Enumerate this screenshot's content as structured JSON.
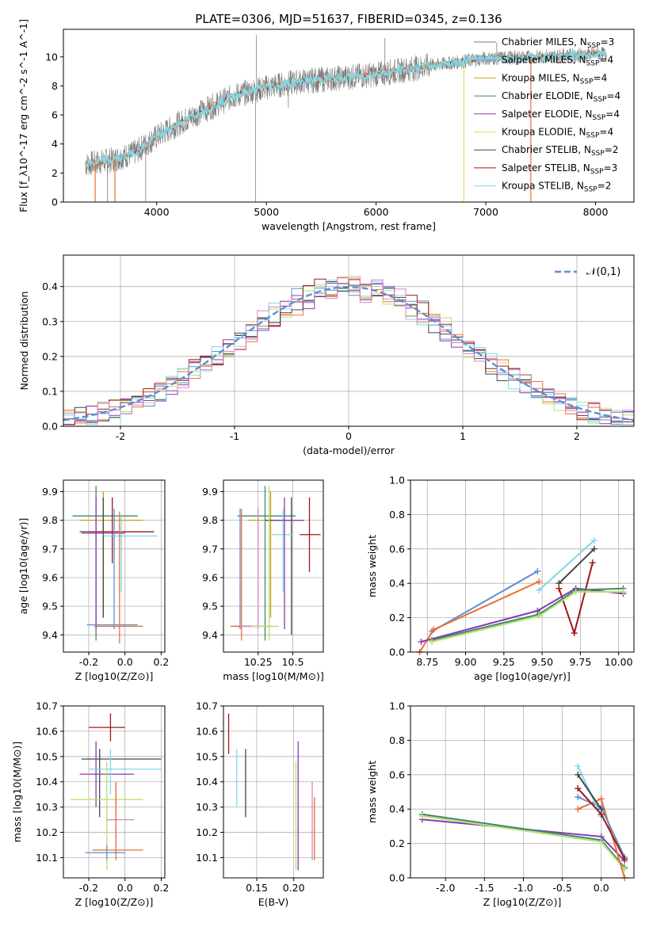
{
  "figure_title": "PLATE=0306, MJD=51637, FIBERID=0345, z=0.136",
  "colors": {
    "Chabrier MILES": "#7a7a7a",
    "Salpeter MILES": "#9a7fd1",
    "Kroupa MILES": "#c0a020",
    "Chabrier ELODIE": "#3a8a6a",
    "Salpeter ELODIE": "#8a3ab0",
    "Kroupa ELODIE": "#dede60",
    "Chabrier STELIB": "#444444",
    "Salpeter STELIB": "#a01818",
    "Kroupa STELIB": "#80d8e8",
    "extra_blue": "#5b8fd6",
    "extra_orange": "#e87030",
    "extra_pink": "#e080c0",
    "extra_green": "#b8e070"
  },
  "chart_data": [
    {
      "id": "spectrum",
      "type": "line",
      "xlabel": "wavelength [Angstrom, rest frame]",
      "ylabel": "Flux [f_λ10^-17 erg cm^-2 s^-1 A^-1]",
      "xlim": [
        3150,
        8350
      ],
      "ylim": [
        0,
        11.9
      ],
      "xticks": [
        4000,
        5000,
        6000,
        7000,
        8000
      ],
      "yticks": [
        0,
        2,
        4,
        6,
        8,
        10
      ],
      "legend_position": "top-right",
      "legend": [
        {
          "name": "Chabrier MILES",
          "nssp": "3"
        },
        {
          "name": "Salpeter MILES",
          "nssp": "4"
        },
        {
          "name": "Kroupa MILES",
          "nssp": "4"
        },
        {
          "name": "Chabrier ELODIE",
          "nssp": "4"
        },
        {
          "name": "Salpeter ELODIE",
          "nssp": "4"
        },
        {
          "name": "Kroupa ELODIE",
          "nssp": "4"
        },
        {
          "name": "Chabrier STELIB",
          "nssp": "2"
        },
        {
          "name": "Salpeter STELIB",
          "nssp": "3"
        },
        {
          "name": "Kroupa STELIB",
          "nssp": "2"
        }
      ],
      "continuum": [
        [
          3350,
          2.6
        ],
        [
          3600,
          2.9
        ],
        [
          3800,
          3.4
        ],
        [
          4000,
          4.5
        ],
        [
          4200,
          5.4
        ],
        [
          4400,
          6.2
        ],
        [
          4700,
          7.3
        ],
        [
          5000,
          7.9
        ],
        [
          5300,
          8.3
        ],
        [
          5600,
          8.5
        ],
        [
          6000,
          8.8
        ],
        [
          6500,
          9.4
        ],
        [
          7000,
          9.9
        ],
        [
          7500,
          10.0
        ],
        [
          8000,
          10.2
        ],
        [
          8100,
          10.2
        ]
      ],
      "gray_spikes": [
        [
          3550,
          0
        ],
        [
          3900,
          0
        ],
        [
          4900,
          0
        ],
        [
          4910,
          11.5
        ],
        [
          5200,
          6.5
        ],
        [
          6080,
          11.3
        ],
        [
          7100,
          11.0
        ]
      ],
      "orange_drops": [
        [
          3440,
          0
        ],
        [
          3620,
          0
        ],
        [
          7410,
          0
        ]
      ],
      "yellow_drop": [
        6800,
        0
      ]
    },
    {
      "id": "residuals",
      "type": "histogram",
      "xlabel": "(data-model)/error",
      "ylabel": "Normed distribution",
      "xlim": [
        -2.5,
        2.5
      ],
      "ylim": [
        0,
        0.49
      ],
      "xticks": [
        -2,
        -1,
        0,
        1,
        2
      ],
      "yticks": [
        0.0,
        0.1,
        0.2,
        0.3,
        0.4
      ],
      "bin_width": 0.1,
      "reference_label": "𝒩(0,1)",
      "legend_position": "top-right"
    },
    {
      "id": "age_vs_Z",
      "type": "scatter",
      "xlabel": "Z [log10(Z/Z⊙)]",
      "ylabel": "age [log10(age/yr)]",
      "xlim": [
        -0.34,
        0.22
      ],
      "ylim": [
        9.34,
        9.94
      ],
      "xticks": [
        -0.2,
        0.0,
        0.2
      ],
      "yticks": [
        9.4,
        9.5,
        9.6,
        9.7,
        9.8,
        9.9
      ]
    },
    {
      "id": "age_vs_mass",
      "type": "scatter",
      "xlabel": "mass [log10(M/M⊙)]",
      "xlim": [
        10.0,
        10.72
      ],
      "ylim": [
        9.34,
        9.94
      ],
      "xticks": [
        10.25,
        10.5
      ],
      "yticks": [
        9.4,
        9.5,
        9.6,
        9.7,
        9.8,
        9.9
      ]
    },
    {
      "id": "mw_vs_age",
      "type": "line",
      "xlabel": "age [log10(age/yr)]",
      "ylabel": "mass weight",
      "xlim": [
        8.64,
        10.1
      ],
      "ylim": [
        0,
        1.0
      ],
      "xticks": [
        8.75,
        9.0,
        9.25,
        9.5,
        9.75,
        10.0
      ],
      "yticks": [
        0.0,
        0.2,
        0.4,
        0.6,
        0.8,
        1.0
      ],
      "series": [
        {
          "color": "#5b8fd6",
          "points": [
            [
              8.78,
              0.12
            ],
            [
              9.47,
              0.47
            ]
          ]
        },
        {
          "color": "#e87030",
          "points": [
            [
              8.7,
              0.0
            ],
            [
              8.79,
              0.13
            ],
            [
              9.48,
              0.41
            ]
          ]
        },
        {
          "color": "#80d8e8",
          "points": [
            [
              9.48,
              0.36
            ],
            [
              9.84,
              0.65
            ]
          ]
        },
        {
          "color": "#444444",
          "points": [
            [
              9.61,
              0.4
            ],
            [
              9.84,
              0.6
            ]
          ]
        },
        {
          "color": "#a01818",
          "points": [
            [
              9.61,
              0.37
            ],
            [
              9.71,
              0.11
            ],
            [
              9.83,
              0.52
            ]
          ]
        },
        {
          "color": "#8a3ab0",
          "points": [
            [
              8.71,
              0.06
            ],
            [
              9.47,
              0.24
            ],
            [
              9.72,
              0.37
            ],
            [
              10.03,
              0.34
            ]
          ]
        },
        {
          "color": "#3a8a6a",
          "points": [
            [
              8.78,
              0.07
            ],
            [
              9.48,
              0.22
            ],
            [
              9.72,
              0.36
            ],
            [
              10.03,
              0.37
            ]
          ]
        },
        {
          "color": "#b8e070",
          "points": [
            [
              8.78,
              0.06
            ],
            [
              9.48,
              0.21
            ],
            [
              9.72,
              0.35
            ],
            [
              10.03,
              0.35
            ]
          ]
        }
      ]
    },
    {
      "id": "mass_vs_Z",
      "type": "scatter",
      "xlabel": "Z [log10(Z/Z⊙)]",
      "ylabel": "mass [log10(M/M⊙)]",
      "xlim": [
        -0.34,
        0.22
      ],
      "ylim": [
        10.02,
        10.7
      ],
      "xticks": [
        -0.2,
        0.0,
        0.2
      ],
      "yticks": [
        10.1,
        10.2,
        10.3,
        10.4,
        10.5,
        10.6,
        10.7
      ]
    },
    {
      "id": "mass_vs_ebv",
      "type": "scatter",
      "xlabel": "E(B-V)",
      "xlim": [
        0.105,
        0.24
      ],
      "ylim": [
        10.02,
        10.7
      ],
      "xticks": [
        0.15,
        0.2
      ],
      "yticks": [
        10.1,
        10.2,
        10.3,
        10.4,
        10.5,
        10.6,
        10.7
      ]
    },
    {
      "id": "mw_vs_Z",
      "type": "line",
      "xlabel": "Z [log10(Z/Z⊙)]",
      "ylabel": "mass weight",
      "xlim": [
        -2.45,
        0.42
      ],
      "ylim": [
        0,
        1.0
      ],
      "xticks": [
        -2.0,
        -1.5,
        -1.0,
        -0.5,
        0.0
      ],
      "yticks": [
        0.0,
        0.2,
        0.4,
        0.6,
        0.8,
        1.0
      ],
      "series": [
        {
          "color": "#8a3ab0",
          "points": [
            [
              -2.3,
              0.34
            ],
            [
              0.0,
              0.24
            ],
            [
              0.3,
              0.1
            ]
          ]
        },
        {
          "color": "#3a8a6a",
          "points": [
            [
              -2.3,
              0.37
            ],
            [
              0.0,
              0.22
            ],
            [
              0.3,
              0.06
            ]
          ]
        },
        {
          "color": "#b8e070",
          "points": [
            [
              -2.3,
              0.36
            ],
            [
              0.0,
              0.21
            ],
            [
              0.3,
              0.05
            ]
          ]
        },
        {
          "color": "#e87030",
          "points": [
            [
              -0.3,
              0.4
            ],
            [
              0.0,
              0.46
            ],
            [
              0.3,
              0.0
            ]
          ]
        },
        {
          "color": "#5b8fd6",
          "points": [
            [
              -0.3,
              0.47
            ],
            [
              0.0,
              0.41
            ],
            [
              0.3,
              0.12
            ]
          ]
        },
        {
          "color": "#80d8e8",
          "points": [
            [
              -0.3,
              0.65
            ],
            [
              0.0,
              0.36
            ]
          ]
        },
        {
          "color": "#444444",
          "points": [
            [
              -0.3,
              0.6
            ],
            [
              0.0,
              0.4
            ]
          ]
        },
        {
          "color": "#a01818",
          "points": [
            [
              -0.3,
              0.52
            ],
            [
              0.0,
              0.37
            ],
            [
              0.3,
              0.11
            ]
          ]
        }
      ]
    }
  ],
  "errorbars_age_Z": [
    {
      "c": "#3a8a6a",
      "x": -0.16,
      "y": 9.815,
      "xe": [
        -0.29,
        0.07
      ],
      "ye": [
        9.38,
        9.92
      ]
    },
    {
      "c": "#c0a020",
      "x": -0.12,
      "y": 9.8,
      "xe": [
        -0.25,
        0.1
      ],
      "ye": [
        9.46,
        9.9
      ]
    },
    {
      "c": "#444444",
      "x": -0.12,
      "y": 9.76,
      "xe": [
        -0.25,
        0.16
      ],
      "ye": [
        9.46,
        9.88
      ]
    },
    {
      "c": "#a01818",
      "x": -0.07,
      "y": 9.76,
      "xe": [
        -0.2,
        0.16
      ],
      "ye": [
        9.65,
        9.88
      ]
    },
    {
      "c": "#80d8e8",
      "x": -0.02,
      "y": 9.745,
      "xe": [
        -0.12,
        0.18
      ],
      "ye": [
        9.55,
        9.82
      ]
    },
    {
      "c": "#8a3ab0",
      "x": -0.16,
      "y": 9.755,
      "xe": [
        -0.24,
        0.0
      ],
      "ye": [
        9.42,
        9.88
      ]
    },
    {
      "c": "#5b8fd6",
      "x": -0.06,
      "y": 9.435,
      "xe": [
        -0.21,
        0.07
      ],
      "ye": [
        9.42,
        9.84
      ]
    },
    {
      "c": "#e87030",
      "x": -0.03,
      "y": 9.43,
      "xe": [
        -0.17,
        0.1
      ],
      "ye": [
        9.37,
        9.83
      ]
    }
  ],
  "errorbars_age_mass": [
    {
      "c": "#3a8a6a",
      "x": 10.3,
      "y": 9.815,
      "xe": [
        10.1,
        10.52
      ],
      "ye": [
        9.38,
        9.92
      ]
    },
    {
      "c": "#c0a020",
      "x": 10.34,
      "y": 9.8,
      "xe": [
        10.18,
        10.5
      ],
      "ye": [
        9.46,
        9.9
      ]
    },
    {
      "c": "#444444",
      "x": 10.49,
      "y": 9.8,
      "xe": [
        10.3,
        10.58
      ],
      "ye": [
        9.4,
        9.88
      ]
    },
    {
      "c": "#a01818",
      "x": 10.62,
      "y": 9.75,
      "xe": [
        10.55,
        10.7
      ],
      "ye": [
        9.62,
        9.88
      ]
    },
    {
      "c": "#80d8e8",
      "x": 10.43,
      "y": 9.75,
      "xe": [
        10.35,
        10.5
      ],
      "ye": [
        9.55,
        9.84
      ]
    },
    {
      "c": "#8a3ab0",
      "x": 10.44,
      "y": 9.8,
      "xe": [
        10.38,
        10.58
      ],
      "ye": [
        9.42,
        9.88
      ]
    },
    {
      "c": "#5b8fd6",
      "x": 10.12,
      "y": 9.43,
      "xe": [
        10.08,
        10.2
      ],
      "ye": [
        9.42,
        9.84
      ]
    },
    {
      "c": "#e87030",
      "x": 10.13,
      "y": 9.43,
      "xe": [
        10.05,
        10.25
      ],
      "ye": [
        9.38,
        9.84
      ]
    },
    {
      "c": "#e080c0",
      "x": 10.25,
      "y": 9.43,
      "xe": [
        10.12,
        10.35
      ],
      "ye": [
        9.42,
        9.84
      ]
    },
    {
      "c": "#b8e070",
      "x": 10.33,
      "y": 9.43,
      "xe": [
        10.2,
        10.4
      ],
      "ye": [
        9.38,
        9.92
      ]
    }
  ],
  "errorbars_mass_Z": [
    {
      "c": "#a01818",
      "x": -0.08,
      "y": 10.615,
      "xe": [
        -0.2,
        0.0
      ],
      "ye": [
        10.56,
        10.67
      ]
    },
    {
      "c": "#444444",
      "x": -0.14,
      "y": 10.49,
      "xe": [
        -0.24,
        0.2
      ],
      "ye": [
        10.26,
        10.53
      ]
    },
    {
      "c": "#8a3ab0",
      "x": -0.16,
      "y": 10.43,
      "xe": [
        -0.25,
        0.05
      ],
      "ye": [
        10.3,
        10.56
      ]
    },
    {
      "c": "#80d8e8",
      "x": -0.08,
      "y": 10.45,
      "xe": [
        -0.2,
        0.2
      ],
      "ye": [
        10.35,
        10.53
      ]
    },
    {
      "c": "#b8e070",
      "x": -0.1,
      "y": 10.33,
      "xe": [
        -0.3,
        0.1
      ],
      "ye": [
        10.05,
        10.48
      ]
    },
    {
      "c": "#e080c0",
      "x": -0.05,
      "y": 10.25,
      "xe": [
        -0.1,
        0.05
      ],
      "ye": [
        10.15,
        10.4
      ]
    },
    {
      "c": "#e87030",
      "x": -0.05,
      "y": 10.13,
      "xe": [
        -0.18,
        0.1
      ],
      "ye": [
        10.09,
        10.4
      ]
    },
    {
      "c": "#5b8fd6",
      "x": -0.1,
      "y": 10.12,
      "xe": [
        -0.22,
        0.0
      ],
      "ye": [
        10.09,
        10.15
      ]
    }
  ],
  "errorbars_mass_ebv": [
    {
      "c": "#a01818",
      "x": 0.112,
      "ye": [
        10.51,
        10.67
      ]
    },
    {
      "c": "#80d8e8",
      "x": 0.123,
      "ye": [
        10.3,
        10.53
      ]
    },
    {
      "c": "#444444",
      "x": 0.135,
      "ye": [
        10.26,
        10.53
      ]
    },
    {
      "c": "#b8e070",
      "x": 0.203,
      "ye": [
        10.05,
        10.48
      ]
    },
    {
      "c": "#8a3ab0",
      "x": 0.206,
      "ye": [
        10.05,
        10.56
      ]
    },
    {
      "c": "#e080c0",
      "x": 0.225,
      "ye": [
        10.09,
        10.4
      ]
    },
    {
      "c": "#e87030",
      "x": 0.228,
      "ye": [
        10.09,
        10.34
      ]
    }
  ]
}
